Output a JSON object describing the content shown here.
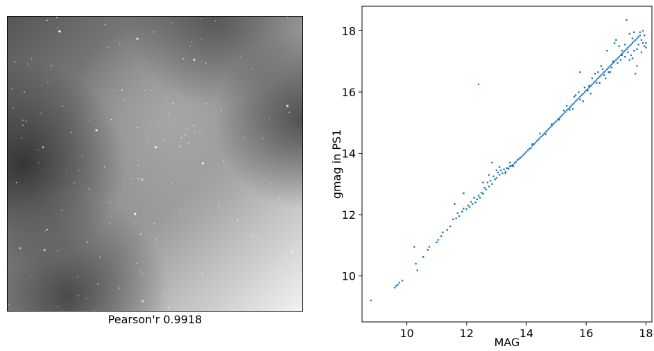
{
  "image_panel": {
    "caption": "Pearson'r 0.9918"
  },
  "chart_data": {
    "type": "scatter",
    "xlabel": "MAG",
    "ylabel": "gmag in PS1",
    "xlim": [
      8.5,
      18.2
    ],
    "ylim": [
      8.5,
      18.8
    ],
    "xticks": [
      10,
      12,
      14,
      16,
      18
    ],
    "yticks": [
      10,
      12,
      14,
      16,
      18
    ],
    "grid": false,
    "series": [
      {
        "color": "#1f77b4",
        "points": [
          [
            8.8,
            9.2
          ],
          [
            9.6,
            9.62
          ],
          [
            9.65,
            9.68
          ],
          [
            9.7,
            9.72
          ],
          [
            9.75,
            9.78
          ],
          [
            9.85,
            9.85
          ],
          [
            10.25,
            10.95
          ],
          [
            10.3,
            10.4
          ],
          [
            10.35,
            10.18
          ],
          [
            10.55,
            10.62
          ],
          [
            10.7,
            10.85
          ],
          [
            10.75,
            10.95
          ],
          [
            11.0,
            11.1
          ],
          [
            11.05,
            11.18
          ],
          [
            11.15,
            11.3
          ],
          [
            11.2,
            11.42
          ],
          [
            11.35,
            11.5
          ],
          [
            11.45,
            11.62
          ],
          [
            11.55,
            11.85
          ],
          [
            11.65,
            11.88
          ],
          [
            11.7,
            12.05
          ],
          [
            11.75,
            11.95
          ],
          [
            11.85,
            12.1
          ],
          [
            11.9,
            12.2
          ],
          [
            12.0,
            12.18
          ],
          [
            12.05,
            12.3
          ],
          [
            12.1,
            12.25
          ],
          [
            12.15,
            12.42
          ],
          [
            12.2,
            12.35
          ],
          [
            12.3,
            12.4
          ],
          [
            12.35,
            12.5
          ],
          [
            12.4,
            12.62
          ],
          [
            12.45,
            12.55
          ],
          [
            12.5,
            12.72
          ],
          [
            12.55,
            12.68
          ],
          [
            12.6,
            12.88
          ],
          [
            12.65,
            12.82
          ],
          [
            12.7,
            13.05
          ],
          [
            12.75,
            12.92
          ],
          [
            12.8,
            13.1
          ],
          [
            12.85,
            13.0
          ],
          [
            12.9,
            13.25
          ],
          [
            12.95,
            13.15
          ],
          [
            13.0,
            13.2
          ],
          [
            13.05,
            13.38
          ],
          [
            13.1,
            13.3
          ],
          [
            13.15,
            13.45
          ],
          [
            13.2,
            13.35
          ],
          [
            13.25,
            13.48
          ],
          [
            13.3,
            13.4
          ],
          [
            13.35,
            13.52
          ],
          [
            13.4,
            13.5
          ],
          [
            13.45,
            13.58
          ],
          [
            13.5,
            13.6
          ],
          [
            13.55,
            13.62
          ],
          [
            13.6,
            13.68
          ],
          [
            13.65,
            13.72
          ],
          [
            13.7,
            13.78
          ],
          [
            13.75,
            13.82
          ],
          [
            13.8,
            13.86
          ],
          [
            13.85,
            13.9
          ],
          [
            13.9,
            13.95
          ],
          [
            13.95,
            14.0
          ],
          [
            14.0,
            14.05
          ],
          [
            14.05,
            14.1
          ],
          [
            14.1,
            14.15
          ],
          [
            14.15,
            14.18
          ],
          [
            14.2,
            14.25
          ],
          [
            14.25,
            14.3
          ],
          [
            14.3,
            14.35
          ],
          [
            14.35,
            14.4
          ],
          [
            14.4,
            14.45
          ],
          [
            14.45,
            14.5
          ],
          [
            14.5,
            14.55
          ],
          [
            14.55,
            14.6
          ],
          [
            14.6,
            14.65
          ],
          [
            14.65,
            14.7
          ],
          [
            14.7,
            14.75
          ],
          [
            14.75,
            14.8
          ],
          [
            14.8,
            14.85
          ],
          [
            14.85,
            14.9
          ],
          [
            14.9,
            14.95
          ],
          [
            14.95,
            15.0
          ],
          [
            15.0,
            15.05
          ],
          [
            15.05,
            15.1
          ],
          [
            15.1,
            15.15
          ],
          [
            15.15,
            15.2
          ],
          [
            15.2,
            15.25
          ],
          [
            15.25,
            15.3
          ],
          [
            15.3,
            15.35
          ],
          [
            15.35,
            15.4
          ],
          [
            15.4,
            15.45
          ],
          [
            15.45,
            15.5
          ],
          [
            15.5,
            15.55
          ],
          [
            15.55,
            15.6
          ],
          [
            15.6,
            15.65
          ],
          [
            15.65,
            15.7
          ],
          [
            15.7,
            15.75
          ],
          [
            15.75,
            15.8
          ],
          [
            15.8,
            15.85
          ],
          [
            15.85,
            15.9
          ],
          [
            15.9,
            15.95
          ],
          [
            15.95,
            16.0
          ],
          [
            16.0,
            16.05
          ],
          [
            16.05,
            16.1
          ],
          [
            16.1,
            16.15
          ],
          [
            16.15,
            16.2
          ],
          [
            16.2,
            16.25
          ],
          [
            16.25,
            16.3
          ],
          [
            16.3,
            16.35
          ],
          [
            16.35,
            16.4
          ],
          [
            16.4,
            16.45
          ],
          [
            16.45,
            16.5
          ],
          [
            16.5,
            16.55
          ],
          [
            16.55,
            16.6
          ],
          [
            16.6,
            16.65
          ],
          [
            16.65,
            16.7
          ],
          [
            16.7,
            16.75
          ],
          [
            16.75,
            16.8
          ],
          [
            16.8,
            16.85
          ],
          [
            16.85,
            16.9
          ],
          [
            16.9,
            16.95
          ],
          [
            16.95,
            17.0
          ],
          [
            17.0,
            17.05
          ],
          [
            17.05,
            17.1
          ],
          [
            17.1,
            17.15
          ],
          [
            17.15,
            17.2
          ],
          [
            17.2,
            17.25
          ],
          [
            17.25,
            17.3
          ],
          [
            17.3,
            17.35
          ],
          [
            17.35,
            17.4
          ],
          [
            17.4,
            17.45
          ],
          [
            17.45,
            17.5
          ],
          [
            17.5,
            17.55
          ],
          [
            17.55,
            17.6
          ],
          [
            17.6,
            17.65
          ],
          [
            17.65,
            17.7
          ],
          [
            17.7,
            17.75
          ],
          [
            17.75,
            17.8
          ],
          [
            17.8,
            17.85
          ],
          [
            17.85,
            17.7
          ],
          [
            17.9,
            17.6
          ],
          [
            17.95,
            17.5
          ],
          [
            18.0,
            17.45
          ],
          [
            13.3,
            13.35
          ],
          [
            13.55,
            13.58
          ],
          [
            14.2,
            14.3
          ],
          [
            14.65,
            14.62
          ],
          [
            15.1,
            15.1
          ],
          [
            15.45,
            15.42
          ],
          [
            15.8,
            15.75
          ],
          [
            16.1,
            16.2
          ],
          [
            16.35,
            16.3
          ],
          [
            16.6,
            16.55
          ],
          [
            16.75,
            16.65
          ],
          [
            16.9,
            17.0
          ],
          [
            17.05,
            16.95
          ],
          [
            17.15,
            17.05
          ],
          [
            17.2,
            17.35
          ],
          [
            17.3,
            17.15
          ],
          [
            17.4,
            17.3
          ],
          [
            17.5,
            17.2
          ],
          [
            17.55,
            17.1
          ],
          [
            17.6,
            17.35
          ],
          [
            17.7,
            16.85
          ],
          [
            17.65,
            16.6
          ],
          [
            17.8,
            17.95
          ],
          [
            17.9,
            18.0
          ],
          [
            17.75,
            17.55
          ],
          [
            17.85,
            17.3
          ],
          [
            18.0,
            17.6
          ],
          [
            17.95,
            17.85
          ],
          [
            17.45,
            17.9
          ],
          [
            17.35,
            18.35
          ],
          [
            17.6,
            17.95
          ],
          [
            17.1,
            17.5
          ],
          [
            17.0,
            17.7
          ],
          [
            16.95,
            17.6
          ],
          [
            16.7,
            17.35
          ],
          [
            16.5,
            16.85
          ],
          [
            16.3,
            16.6
          ],
          [
            16.2,
            16.45
          ],
          [
            15.95,
            16.15
          ],
          [
            15.75,
            16.0
          ],
          [
            15.6,
            15.85
          ],
          [
            15.35,
            15.55
          ],
          [
            16.8,
            16.65
          ],
          [
            16.65,
            16.45
          ],
          [
            16.45,
            16.3
          ],
          [
            16.15,
            15.95
          ],
          [
            15.9,
            15.7
          ],
          [
            15.55,
            15.45
          ],
          [
            12.4,
            16.25
          ],
          [
            15.8,
            16.65
          ],
          [
            12.85,
            13.7
          ],
          [
            12.25,
            12.55
          ],
          [
            11.9,
            12.7
          ],
          [
            11.6,
            12.35
          ],
          [
            12.55,
            13.05
          ],
          [
            12.75,
            13.3
          ],
          [
            13.0,
            13.45
          ],
          [
            13.1,
            13.55
          ],
          [
            13.45,
            13.7
          ],
          [
            14.45,
            14.65
          ],
          [
            14.85,
            14.95
          ],
          [
            15.25,
            15.4
          ],
          [
            15.65,
            15.9
          ],
          [
            16.05,
            16.05
          ],
          [
            16.4,
            16.65
          ],
          [
            16.55,
            16.75
          ],
          [
            16.85,
            16.8
          ],
          [
            17.2,
            17.2
          ],
          [
            17.45,
            17.05
          ],
          [
            17.7,
            17.4
          ],
          [
            17.55,
            17.75
          ],
          [
            17.3,
            17.55
          ]
        ]
      }
    ]
  }
}
